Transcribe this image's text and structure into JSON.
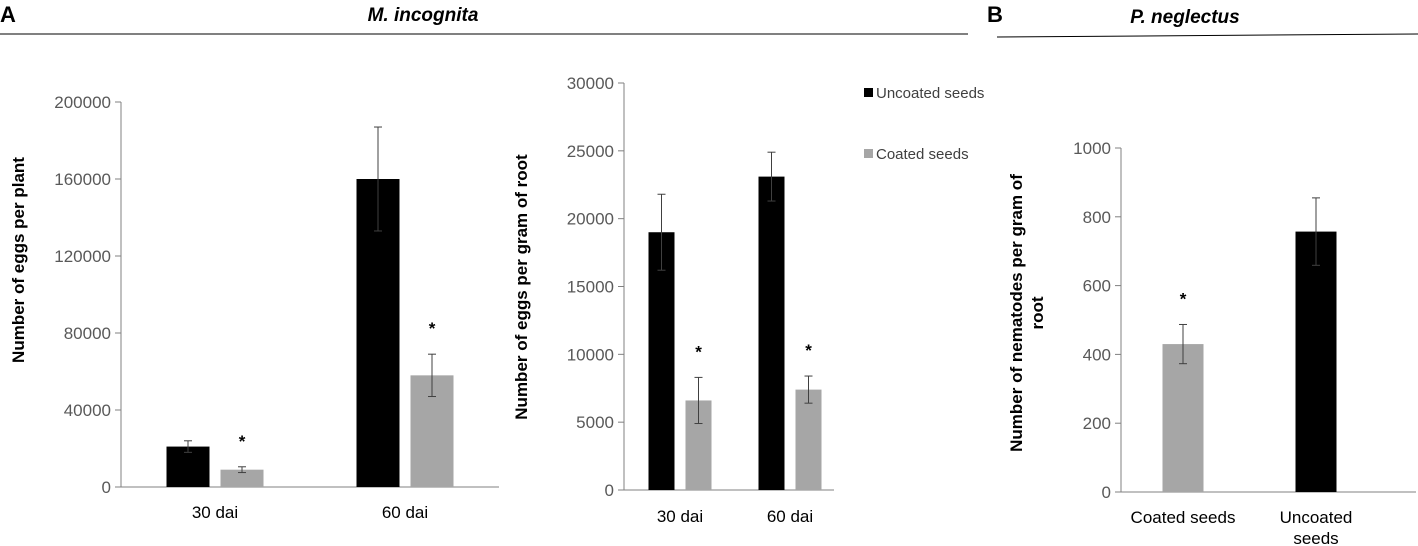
{
  "panel_labels": {
    "a": "A",
    "b": "B"
  },
  "species": {
    "a": "M. incognita",
    "b": "P. neglectus"
  },
  "legend": {
    "uncoated": "Uncoated seeds",
    "coated": "Coated seeds"
  },
  "colors": {
    "uncoated": "#000000",
    "coated": "#a6a6a6",
    "axis": "#808080",
    "error_bar": "#404040"
  },
  "chart_data": [
    {
      "type": "bar",
      "ylabel": "Number of eggs per plant",
      "categories": [
        "30 dai",
        "60 dai"
      ],
      "ylim": [
        0,
        200000
      ],
      "yticks": [
        "0",
        "40000",
        "80000",
        "120000",
        "160000",
        "200000"
      ],
      "series": [
        {
          "name": "Uncoated seeds",
          "color": "#000000",
          "values": [
            21000,
            160000
          ],
          "errors": [
            3000,
            27000
          ],
          "sig": [
            "",
            ""
          ]
        },
        {
          "name": "Coated seeds",
          "color": "#a6a6a6",
          "values": [
            9000,
            58000
          ],
          "errors": [
            1500,
            11000
          ],
          "sig": [
            "*",
            "*"
          ]
        }
      ]
    },
    {
      "type": "bar",
      "ylabel": "Number of eggs per gram of root",
      "categories": [
        "30 dai",
        "60 dai"
      ],
      "ylim": [
        0,
        30000
      ],
      "yticks": [
        "0",
        "5000",
        "10000",
        "15000",
        "20000",
        "25000",
        "30000"
      ],
      "legend_position": "right",
      "series": [
        {
          "name": "Uncoated seeds",
          "color": "#000000",
          "values": [
            19000,
            23100
          ],
          "errors": [
            2800,
            1800
          ],
          "sig": [
            "",
            ""
          ]
        },
        {
          "name": "Coated seeds",
          "color": "#a6a6a6",
          "values": [
            6600,
            7400
          ],
          "errors": [
            1700,
            1000
          ],
          "sig": [
            "*",
            "*"
          ]
        }
      ]
    },
    {
      "type": "bar",
      "ylabel_lines": [
        "Number of nematodes per gram of",
        "root"
      ],
      "categories": [
        "Coated seeds",
        "Uncoated seeds"
      ],
      "category_lines": [
        [
          "Coated seeds"
        ],
        [
          "Uncoated",
          "seeds"
        ]
      ],
      "ylim": [
        0,
        1000
      ],
      "yticks": [
        "0",
        "200",
        "400",
        "600",
        "800",
        "1000"
      ],
      "values": [
        430,
        757
      ],
      "errors": [
        57,
        98
      ],
      "colors": [
        "#a6a6a6",
        "#000000"
      ],
      "sig": [
        "*",
        ""
      ]
    }
  ]
}
